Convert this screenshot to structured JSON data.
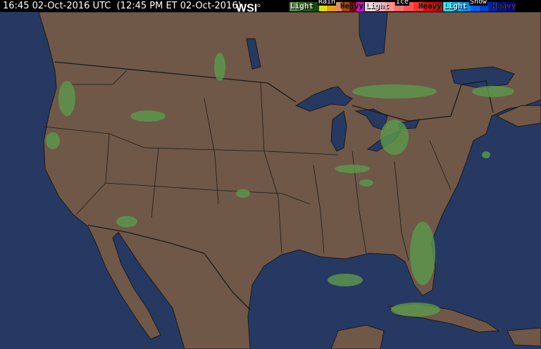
{
  "header": {
    "title": "16:45 02-Oct-2016 UTC  (12:45 PM ET 02-Oct-2016)",
    "logo": "WSI"
  },
  "legend": [
    {
      "name": "Rain",
      "light": "Light",
      "heavy": "Heavy",
      "colors": [
        "#5a8a4a",
        "#3a7a2a",
        "#2a5a1a",
        "#1a4a10",
        "#e0e000",
        "#f0a000",
        "#e09060",
        "#c04000",
        "#800000",
        "#e000e0"
      ]
    },
    {
      "name": "Ice",
      "light": "Light",
      "heavy": "Heavy",
      "colors": [
        "#ffd8e0",
        "#ffb0c0",
        "#ff9090",
        "#ff7070",
        "#ff5050",
        "#ff3030",
        "#f00000",
        "#d00000"
      ]
    },
    {
      "name": "Snow",
      "light": "Light",
      "heavy": "Heavy",
      "colors": [
        "#00e8f8",
        "#00b8f8",
        "#0090f0",
        "#0060f0",
        "#0040d0",
        "#0020b0",
        "#001090",
        "#000080"
      ]
    }
  ],
  "colors": {
    "land": "#6f5848",
    "water": "#263962",
    "border": "#1a1a1a",
    "radar_light": "#5c9a4c",
    "radar_dark": "#2f6a2a"
  }
}
